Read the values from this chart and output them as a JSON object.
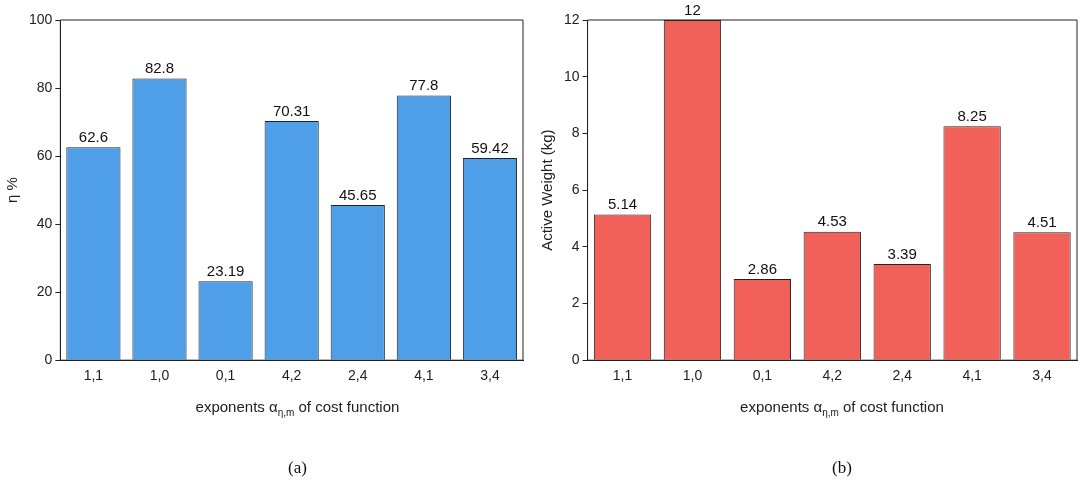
{
  "chart_data": [
    {
      "type": "bar",
      "categories": [
        "1,1",
        "1,0",
        "0,1",
        "4,2",
        "2,4",
        "4,1",
        "3,4"
      ],
      "values": [
        62.6,
        82.8,
        23.19,
        70.31,
        45.65,
        77.8,
        59.42
      ],
      "color": "#4f9ee8",
      "ylim": [
        0,
        100
      ],
      "yticks": [
        0,
        20,
        40,
        60,
        80,
        100
      ],
      "ylabel": "η %",
      "xlabel": "exponents α$_{η,m}$ of cost function",
      "data_labels": true,
      "annotations": [
        "(a)"
      ]
    },
    {
      "type": "bar",
      "categories": [
        "1,1",
        "1,0",
        "0,1",
        "4,2",
        "2,4",
        "4,1",
        "3,4"
      ],
      "values": [
        5.14,
        12,
        2.86,
        4.53,
        3.39,
        8.25,
        4.51
      ],
      "color": "#f2605a",
      "ylim": [
        0,
        12
      ],
      "yticks": [
        0,
        2,
        4,
        6,
        8,
        10,
        12
      ],
      "ylabel": "Active Weight (kg)",
      "xlabel": "exponents α$_{η,m}$ of cost function",
      "data_labels": true,
      "annotations": [
        "(b)"
      ]
    }
  ]
}
